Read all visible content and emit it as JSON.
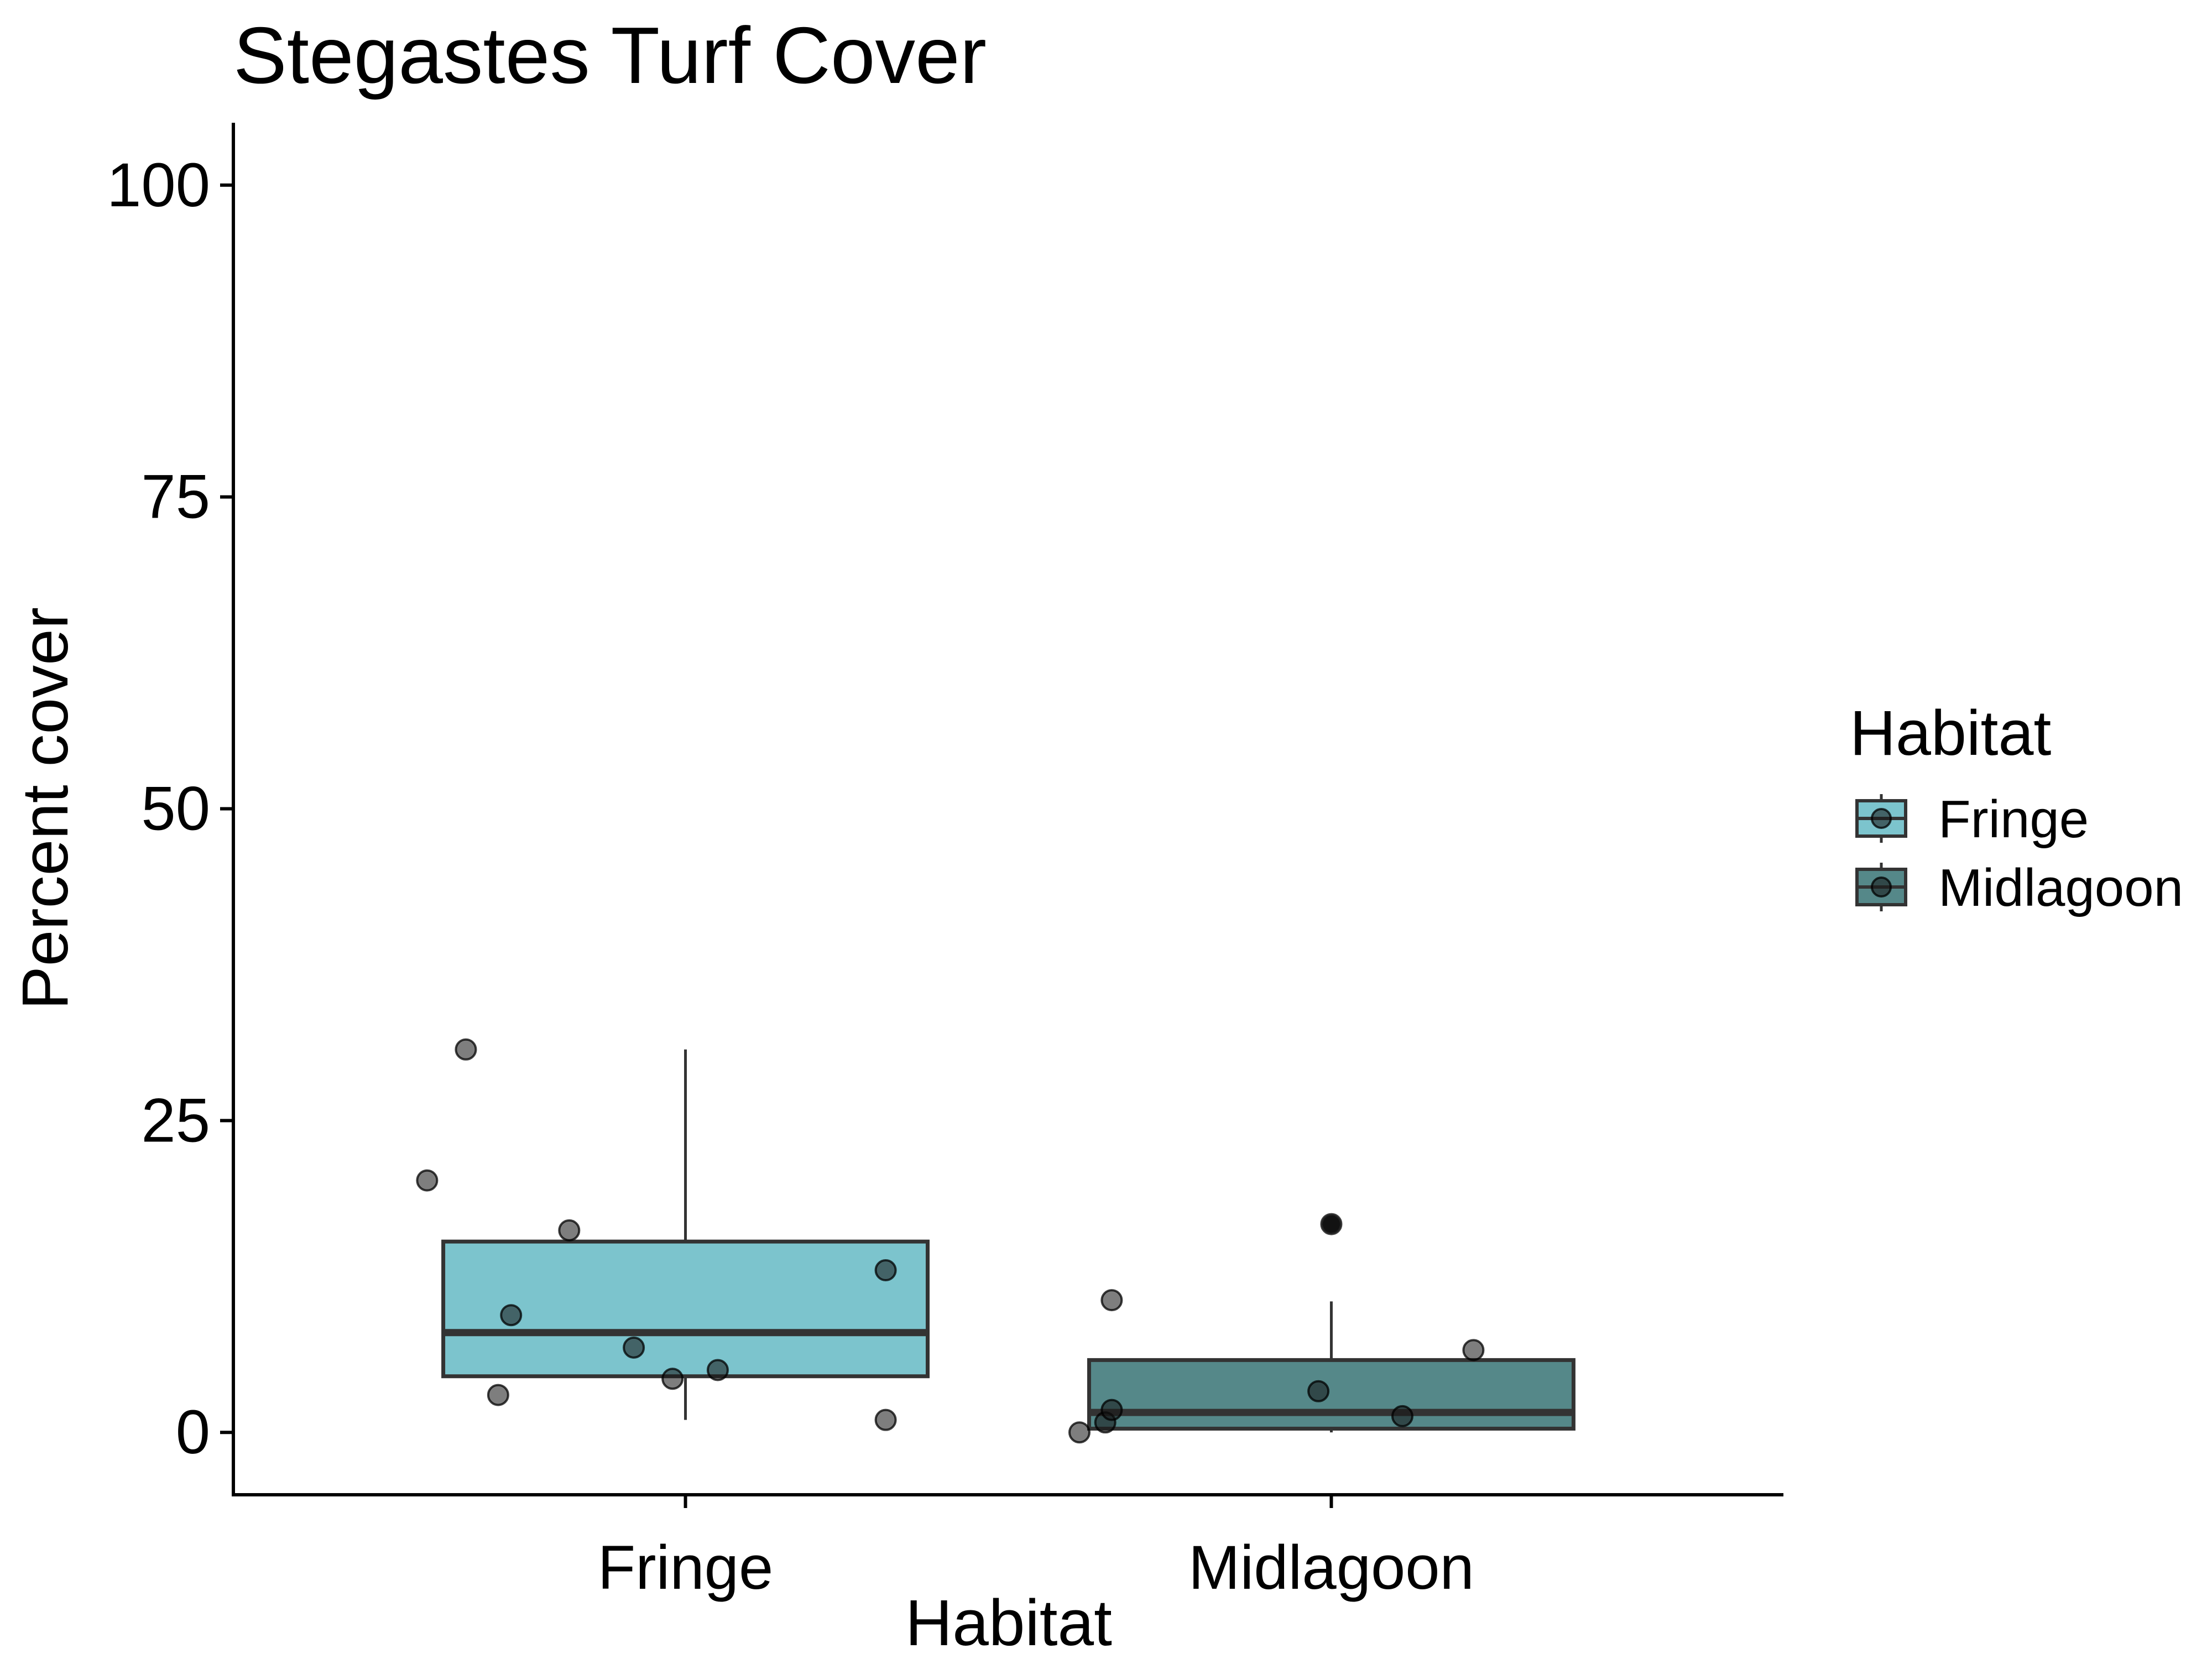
{
  "chart_data": {
    "type": "box",
    "title": "Stegastes Turf Cover",
    "xlabel": "Habitat",
    "ylabel": "Percent cover",
    "ylim": [
      -5,
      105
    ],
    "yticks": [
      0,
      25,
      50,
      75,
      100
    ],
    "grid": false,
    "legend": {
      "title": "Habitat",
      "position": "right",
      "entries": [
        "Fringe",
        "Midlagoon"
      ]
    },
    "categories": [
      "Fringe",
      "Midlagoon"
    ],
    "series": [
      {
        "name": "Fringe",
        "color": "#7cc4cd",
        "stats": {
          "min": 1.0,
          "q1": 4.5,
          "median": 8.0,
          "q3": 15.3,
          "max": 30.7
        },
        "points": [
          {
            "x": -0.4,
            "y": 20.2
          },
          {
            "x": -0.34,
            "y": 30.7
          },
          {
            "x": -0.29,
            "y": 3.0
          },
          {
            "x": -0.27,
            "y": 9.4
          },
          {
            "x": -0.18,
            "y": 16.2
          },
          {
            "x": -0.08,
            "y": 6.8
          },
          {
            "x": -0.02,
            "y": 4.3
          },
          {
            "x": 0.05,
            "y": 5.0
          },
          {
            "x": 0.31,
            "y": 1.0
          },
          {
            "x": 0.31,
            "y": 13.0
          }
        ]
      },
      {
        "name": "Midlagoon",
        "color": "#558889",
        "stats": {
          "min": 0.0,
          "q1": 0.3,
          "median": 1.6,
          "q3": 5.8,
          "max": 10.5
        },
        "points": [
          {
            "x": -0.39,
            "y": 0.0
          },
          {
            "x": -0.35,
            "y": 0.8
          },
          {
            "x": -0.34,
            "y": 1.8
          },
          {
            "x": -0.34,
            "y": 10.6
          },
          {
            "x": -0.02,
            "y": 3.3
          },
          {
            "x": 0.0,
            "y": 16.7
          },
          {
            "x": 0.11,
            "y": 1.3
          },
          {
            "x": 0.22,
            "y": 6.6
          }
        ],
        "outliers": [
          16.7
        ]
      }
    ]
  }
}
